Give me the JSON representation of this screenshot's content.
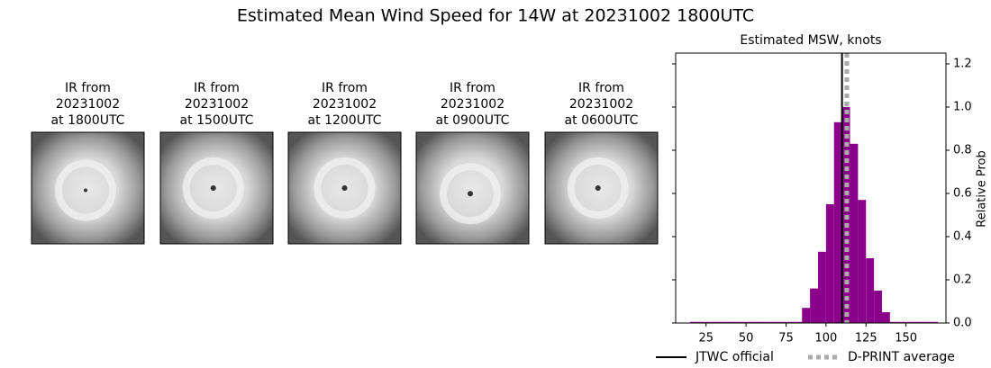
{
  "title": "Estimated Mean Wind Speed for 14W at 20231002 1800UTC",
  "images": [
    {
      "caption": [
        "IR from",
        "20231002",
        "at 1800UTC"
      ]
    },
    {
      "caption": [
        "IR from",
        "20231002",
        "at 1500UTC"
      ]
    },
    {
      "caption": [
        "IR from",
        "20231002",
        "at 1200UTC"
      ]
    },
    {
      "caption": [
        "IR from",
        "20231002",
        "at 0900UTC"
      ]
    },
    {
      "caption": [
        "IR from",
        "20231002",
        "at 0600UTC"
      ]
    }
  ],
  "chart_data": {
    "type": "histogram",
    "title": "Estimated MSW, knots",
    "y2label": "Relative Prob",
    "bins": [
      15,
      20,
      25,
      30,
      35,
      40,
      45,
      50,
      55,
      60,
      65,
      70,
      75,
      80,
      85,
      90,
      95,
      100,
      105,
      110,
      115,
      120,
      125,
      130,
      135,
      140,
      145,
      150,
      155,
      160,
      165,
      170
    ],
    "values": [
      0.005,
      0.005,
      0.005,
      0.005,
      0.005,
      0.005,
      0.005,
      0.005,
      0.005,
      0.005,
      0.005,
      0.005,
      0.005,
      0.005,
      0.07,
      0.16,
      0.33,
      0.55,
      0.93,
      1.0,
      0.83,
      0.57,
      0.3,
      0.15,
      0.05,
      0.005,
      0.005,
      0.005,
      0.005,
      0.005,
      0.005
    ],
    "color": "#8b008b",
    "xlim": [
      6,
      175
    ],
    "xticks": [
      25,
      50,
      75,
      100,
      125,
      150
    ],
    "y2lim": [
      0,
      1.25
    ],
    "y2ticks": [
      {
        "value": 0,
        "label": "0.0"
      },
      {
        "value": 0.2,
        "label": "0.2"
      },
      {
        "value": 0.4,
        "label": "0.4"
      },
      {
        "value": 0.6,
        "label": "0.6"
      },
      {
        "value": 0.8,
        "label": "0.8"
      },
      {
        "value": 1.0,
        "label": "1.0"
      },
      {
        "value": 1.2,
        "label": "1.2"
      }
    ],
    "lines": [
      {
        "name": "JTWC official",
        "value": 110,
        "color": "#000000",
        "style": "solid"
      },
      {
        "name": "D-PRINT average",
        "value": 113,
        "color": "#aaaaaa",
        "style": "dotted"
      }
    ],
    "legend": "bottom"
  }
}
